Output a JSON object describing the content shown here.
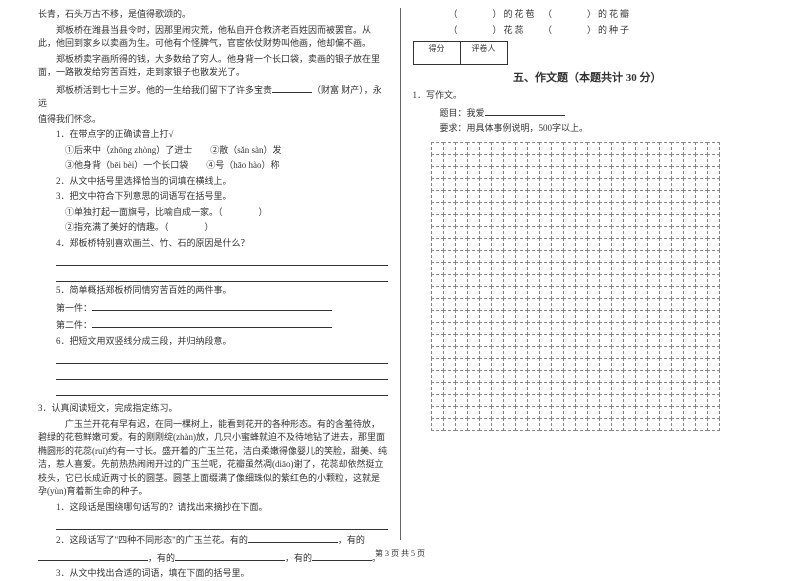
{
  "left": {
    "p1": "长青，石头万古不移，是值得歌颂的。",
    "p2": "郑板桥在潍县当县令时，因那里闹灾荒，他私自开仓救济老百姓因而被罢官。从此，他回到家乡以卖画为生。可他有个怪脾气，官宦依仗财势叫他画，他却偏不画。",
    "p3": "郑板桥卖字画所得的钱，大多数给了穷人。他身背一个长口袋，卖画的银子放在里面，一路散发给穷苦百姓，走到家银子也散发光了。",
    "p4_a": "郑板桥活到七十三岁。他的一生给我们留下了许多宝贵",
    "p4_b": "（财富  财产），永远",
    "p5": "值得我们怀念。",
    "q1": "1．在带点字的正确读音上打√",
    "q1a": "①后来中（zhōng  zhòng）了进士　　②散（sǎn  sàn）发",
    "q1b": "③他身背（bēi  bèi）一个长口袋　　④号（hāo  hào）称",
    "q2": "2．从文中括号里选择恰当的词填在横线上。",
    "q3": "3．把文中符合下列意思的词语写在括号里。",
    "q3a": "①单独打起一面旗号，比喻自成一家。（　　　　）",
    "q3b": "②指充满了美好的情趣。（　　　　）",
    "q4": "4．郑板桥特别喜欢画兰、竹、石的原因是什么？",
    "q5": "5．简单概括郑板桥同情穷苦百姓的两件事。",
    "q5a": "第一件：",
    "q5b": "第二件：",
    "q6": "6．把短文用双竖线分成三段，并归纳段意。",
    "r3": "3．认真阅读短文，完成指定练习。",
    "r3p1": "广玉兰开花有早有迟，在同一棵树上，能看到花开的各种形态。有的含羞待放，碧绿的花苞鲜嫩可爱。有的刚刚绽(zhàn)放，几只小蜜蜂就迫不及待地钻了进去，那里面椭圆形的花蕊(ruǐ)约有一寸长。盛开着的广玉兰花，洁白柔嫩得像婴儿的笑脸，甜美、纯洁，惹人喜爱。先前热热闹闹开过的广玉兰呢，花瓣虽然凋(diāo)谢了，花蕊却依然挺立枝头，它已长成近两寸长的圆茎。圆茎上面缀满了像细珠似的紫红色的小颗粒，这就是孕(yùn)育着新生命的种子。",
    "r3q1": "1．这段话是围绕哪句话写的？请找出来摘抄在下面。",
    "r3q2a": "2．这段话写了\"四种不同形态\"的广玉兰花。有的",
    "r3q2b": "，有的",
    "r3q2c": "，有的",
    "r3q2d": "，有的",
    "r3q2e": "。",
    "r3q3": "3．从文中找出合适的词语，填在下面的括号里。"
  },
  "right": {
    "fill1a": "（　　　）的花苞　（　　　）的花瓣",
    "fill1b": "（　　　）花蕊　　（　　　）的种子",
    "score1": "得分",
    "score2": "评卷人",
    "section": "五、作文题（本题共计 30 分）",
    "w1": "1．写作文。",
    "w1a": "题目：我爱",
    "w1b": "要求：用具体事例说明，500字以上。"
  },
  "footer": "第 3 页  共 5 页",
  "grid": {
    "rows": 24,
    "cols": 24
  },
  "colors": {
    "text": "#333333",
    "grid": "#888888",
    "bg": "#ffffff"
  }
}
